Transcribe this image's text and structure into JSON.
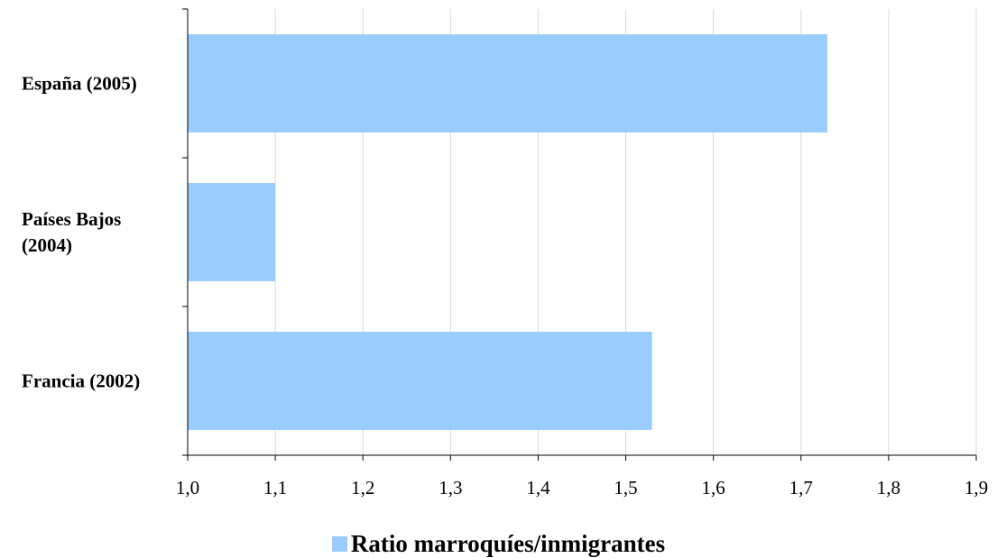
{
  "chart_data": {
    "type": "bar",
    "orientation": "horizontal",
    "categories": [
      "España (2005)",
      "Países Bajos (2004)",
      "Francia (2002)"
    ],
    "category_label_lines": [
      [
        "España (2005)"
      ],
      [
        "Países Bajos",
        "(2004)"
      ],
      [
        "Francia (2002)"
      ]
    ],
    "series": [
      {
        "name": "Ratio marroquíes/inmigrantes",
        "values": [
          1.73,
          1.1,
          1.53
        ],
        "color": "#99ccff"
      }
    ],
    "xlim": [
      1.0,
      1.9
    ],
    "x_ticks": [
      1.0,
      1.1,
      1.2,
      1.3,
      1.4,
      1.5,
      1.6,
      1.7,
      1.8,
      1.9
    ],
    "x_tick_labels": [
      "1,0",
      "1,1",
      "1,2",
      "1,3",
      "1,4",
      "1,5",
      "1,6",
      "1,7",
      "1,8",
      "1,9"
    ],
    "grid": "vertical",
    "legend_position": "bottom",
    "title": "",
    "xlabel": "",
    "ylabel": ""
  },
  "colors": {
    "bar": "#99ccff",
    "grid": "#d9d9d9",
    "axis": "#000000"
  }
}
